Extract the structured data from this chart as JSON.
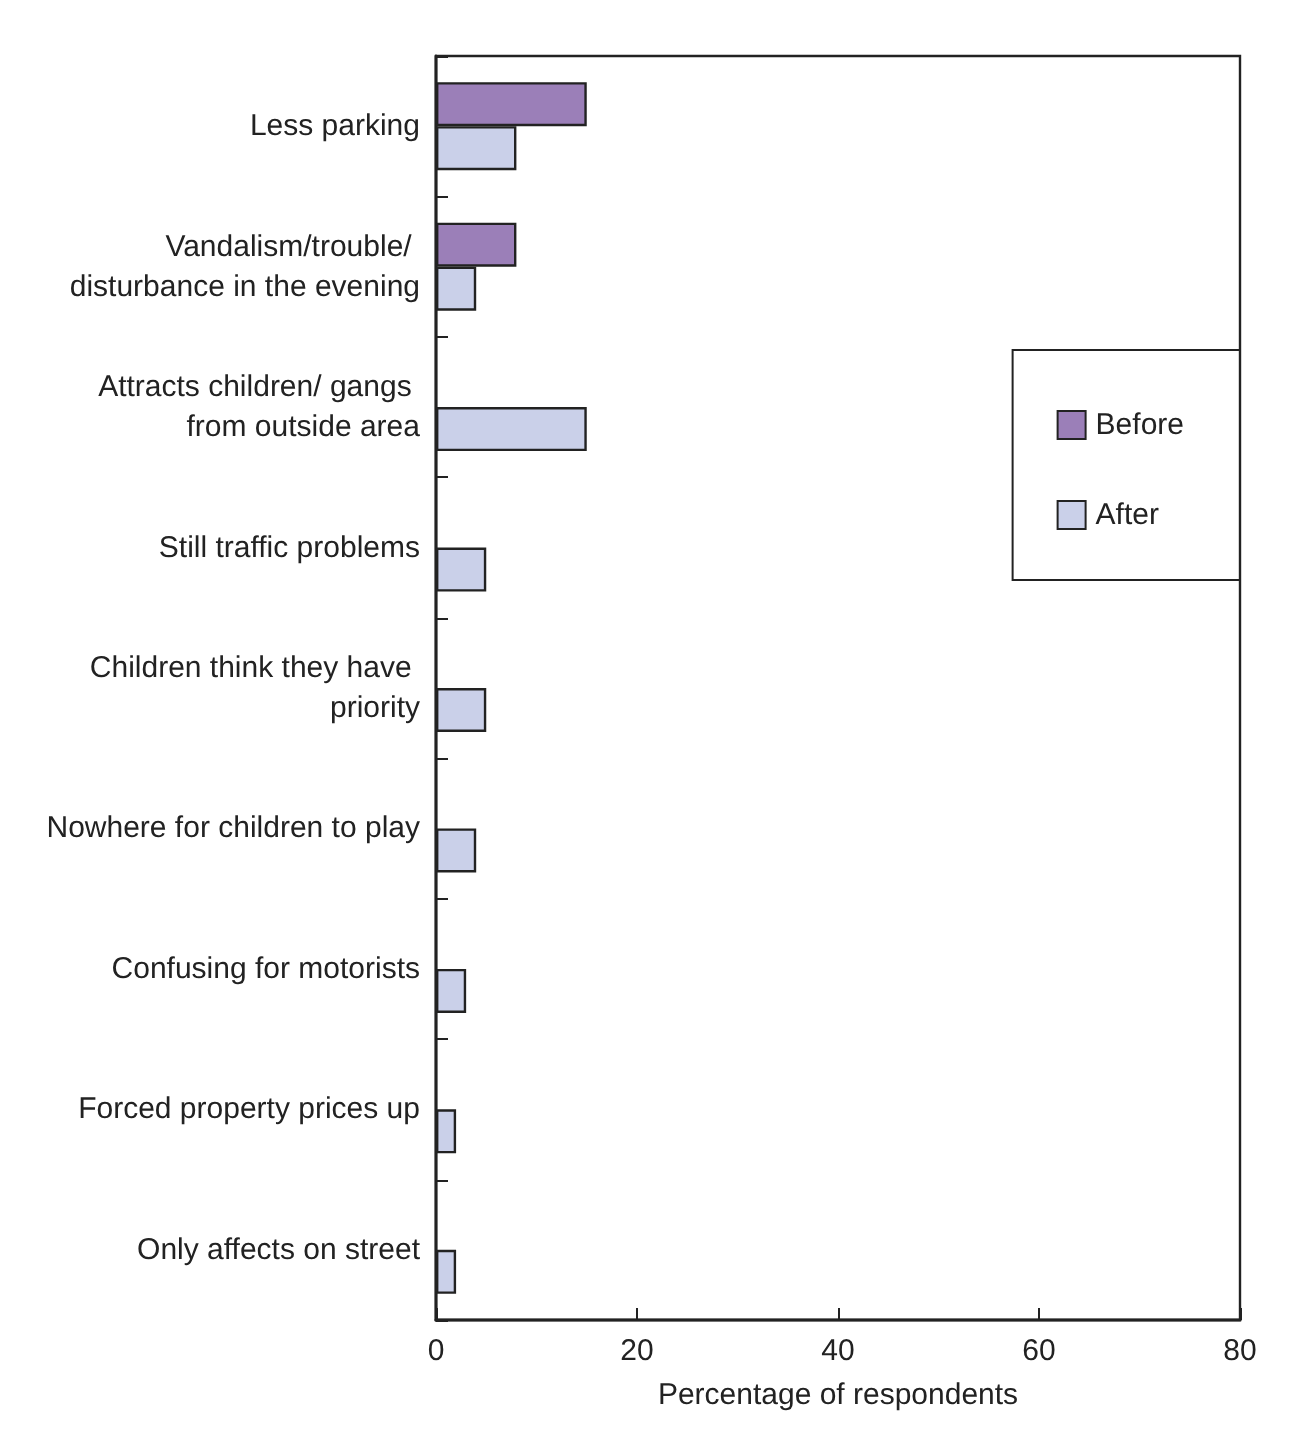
{
  "chart_data": {
    "type": "bar",
    "orientation": "horizontal",
    "xlabel": "Percentage of respondents",
    "categories": [
      "Less parking",
      "Vandalism/trouble/ disturbance in the evening",
      "Attracts children/ gangs from outside area",
      "Still traffic problems",
      "Children think they have priority",
      "Nowhere for children to play",
      "Confusing for motorists",
      "Forced property prices up",
      "Only affects on street"
    ],
    "series": [
      {
        "name": "Before",
        "color": "#9b7fb8",
        "values": [
          15,
          8,
          null,
          null,
          null,
          null,
          null,
          null,
          null
        ]
      },
      {
        "name": "After",
        "color": "#cad0e9",
        "values": [
          8,
          4,
          15,
          5,
          5,
          4,
          3,
          2,
          2
        ]
      }
    ],
    "xlim": [
      0,
      80
    ],
    "xticks": [
      0,
      20,
      40,
      60,
      80
    ],
    "grid": false,
    "legend": "right"
  }
}
